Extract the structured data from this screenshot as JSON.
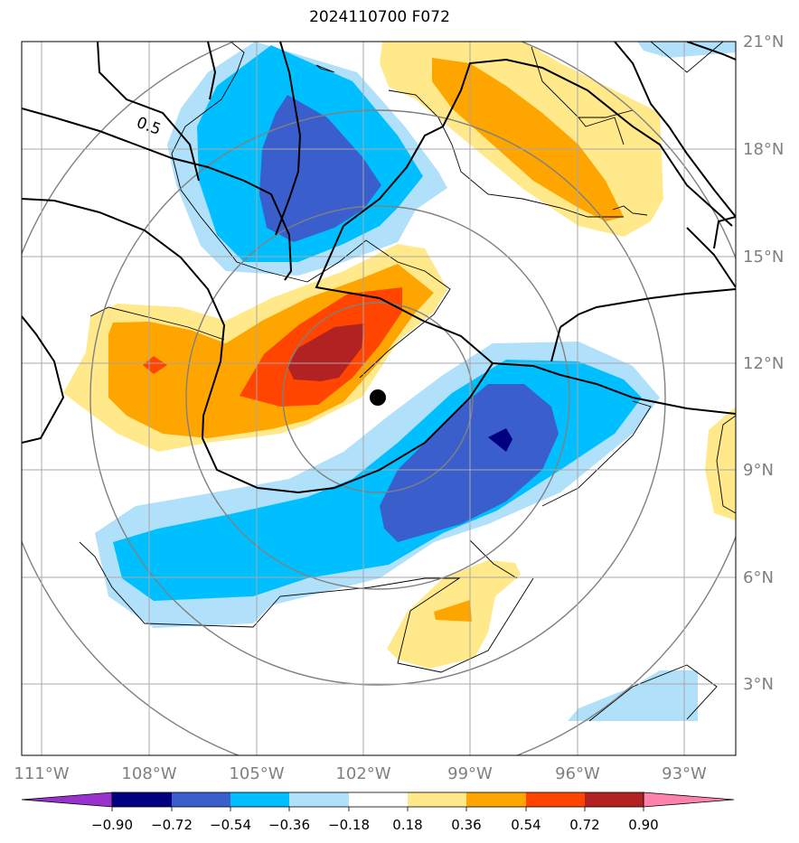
{
  "title": "2024110700 F072",
  "map": {
    "lon_labels": [
      "111°W",
      "108°W",
      "105°W",
      "102°W",
      "99°W",
      "96°W",
      "93°W"
    ],
    "lat_labels": [
      "21°N",
      "18°N",
      "15°N",
      "12°N",
      "9°N",
      "6°N",
      "3°N"
    ],
    "contour_label": "0.5",
    "center_marker": "storm-center"
  },
  "colorbar": {
    "ticks": [
      "−0.90",
      "−0.72",
      "−0.54",
      "−0.36",
      "−0.18",
      "0.18",
      "0.36",
      "0.54",
      "0.72",
      "0.90"
    ],
    "colors": [
      "#9932cc",
      "#000080",
      "#3a5fcd",
      "#00bfff",
      "#b0e0fa",
      "#ffffff",
      "#ffe98a",
      "#ffa500",
      "#ff4500",
      "#b22222",
      "#ff82ab"
    ]
  },
  "colors": {
    "neg_light": "#b0e0fa",
    "neg_mid": "#00bfff",
    "neg_strong": "#3a5fcd",
    "neg_max": "#000080",
    "pos_light": "#ffe98a",
    "pos_mid": "#ffa500",
    "pos_strong": "#ff4500",
    "pos_max": "#b22222"
  }
}
